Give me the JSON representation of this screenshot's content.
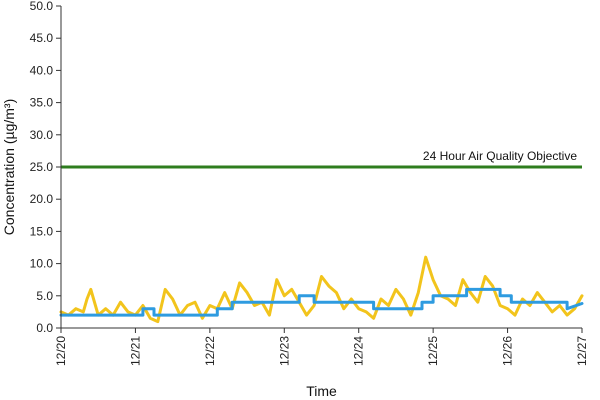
{
  "chart_data": {
    "type": "line",
    "xlabel": "Time",
    "ylabel": "Concentration (µg/m³)",
    "x_ticks": [
      "12/20",
      "12/21",
      "12/22",
      "12/23",
      "12/24",
      "12/25",
      "12/26",
      "12/27"
    ],
    "ylim": [
      0,
      50
    ],
    "y_ticks": [
      "0.0",
      "5.0",
      "10.0",
      "15.0",
      "20.0",
      "25.0",
      "30.0",
      "35.0",
      "40.0",
      "45.0",
      "50.0"
    ],
    "grid": false,
    "objective": {
      "label": "24 Hour Air Quality Objective",
      "value": 25,
      "color": "#2e7d1e"
    },
    "series": [
      {
        "color": "#f2c41c",
        "x_days": [
          0.0,
          0.1,
          0.2,
          0.3,
          0.35,
          0.4,
          0.5,
          0.6,
          0.7,
          0.8,
          0.9,
          1.0,
          1.1,
          1.2,
          1.3,
          1.4,
          1.5,
          1.6,
          1.7,
          1.8,
          1.9,
          2.0,
          2.1,
          2.2,
          2.3,
          2.4,
          2.5,
          2.6,
          2.7,
          2.8,
          2.9,
          3.0,
          3.1,
          3.2,
          3.3,
          3.4,
          3.5,
          3.6,
          3.7,
          3.8,
          3.9,
          4.0,
          4.1,
          4.2,
          4.3,
          4.4,
          4.5,
          4.6,
          4.7,
          4.8,
          4.9,
          5.0,
          5.1,
          5.2,
          5.3,
          5.4,
          5.5,
          5.6,
          5.7,
          5.8,
          5.9,
          6.0,
          6.1,
          6.2,
          6.3,
          6.4,
          6.5,
          6.6,
          6.7,
          6.8,
          6.9,
          7.0
        ],
        "values": [
          2.5,
          2.0,
          3.0,
          2.5,
          4.5,
          6.0,
          2.0,
          3.0,
          2.0,
          4.0,
          2.5,
          2.0,
          3.5,
          1.5,
          1.0,
          6.0,
          4.5,
          2.0,
          3.5,
          4.0,
          1.5,
          3.5,
          3.0,
          5.5,
          3.0,
          7.0,
          5.5,
          3.5,
          4.0,
          2.0,
          7.5,
          5.0,
          6.0,
          4.0,
          2.0,
          3.5,
          8.0,
          6.5,
          5.5,
          3.0,
          4.5,
          3.0,
          2.5,
          1.5,
          4.5,
          3.5,
          6.0,
          4.5,
          2.0,
          5.5,
          11.0,
          7.5,
          5.0,
          4.5,
          3.5,
          7.5,
          5.5,
          4.0,
          8.0,
          6.5,
          3.5,
          3.0,
          2.0,
          4.5,
          3.5,
          5.5,
          4.0,
          2.5,
          3.5,
          2.0,
          3.0,
          5.0
        ]
      },
      {
        "color": "#2e9be0",
        "x_days": [
          0.0,
          0.12,
          0.12,
          1.1,
          1.1,
          1.25,
          1.25,
          2.1,
          2.1,
          2.3,
          2.3,
          2.7,
          2.7,
          3.2,
          3.2,
          3.4,
          3.4,
          4.2,
          4.2,
          4.5,
          4.5,
          4.85,
          4.85,
          5.0,
          5.0,
          5.45,
          5.45,
          5.9,
          5.9,
          6.05,
          6.05,
          6.8,
          6.8,
          7.0
        ],
        "values": [
          2.0,
          2.0,
          2.0,
          2.0,
          3.0,
          3.0,
          2.0,
          2.0,
          3.0,
          3.0,
          4.0,
          4.0,
          4.0,
          4.0,
          5.0,
          5.0,
          4.0,
          4.0,
          3.0,
          3.0,
          3.0,
          3.0,
          4.0,
          4.0,
          5.0,
          5.0,
          6.0,
          6.0,
          5.0,
          5.0,
          4.0,
          4.0,
          3.0,
          3.8
        ]
      }
    ]
  }
}
